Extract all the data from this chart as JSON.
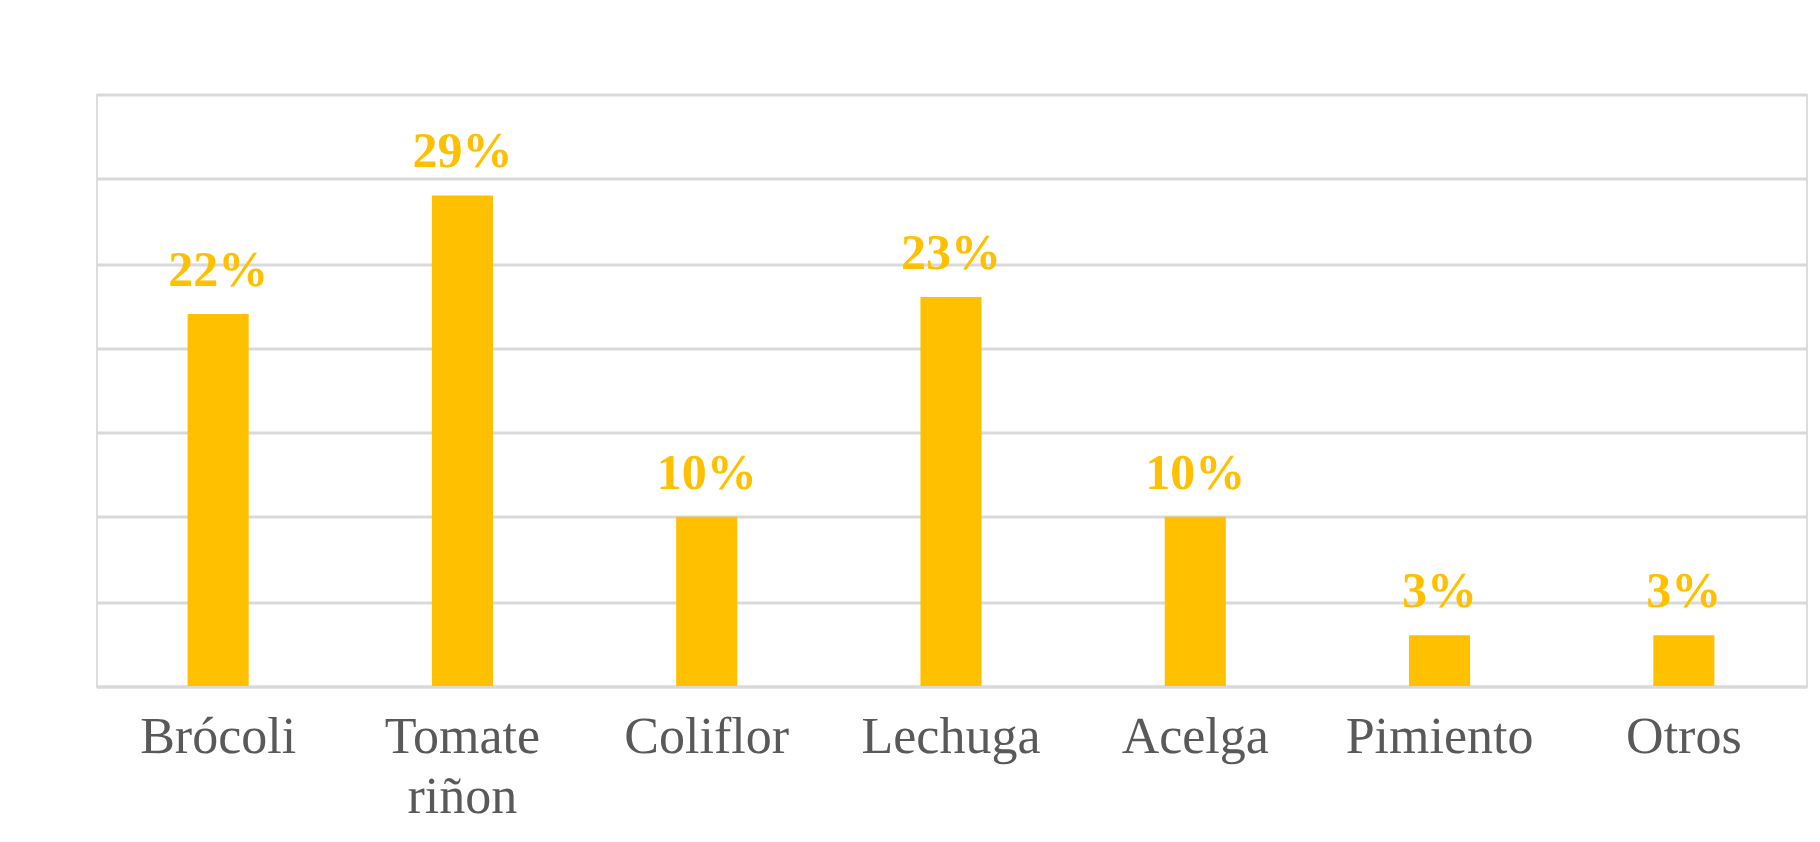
{
  "chart_data": {
    "type": "bar",
    "categories": [
      "Brócoli",
      "Tomate riñon",
      "Coliflor",
      "Lechuga",
      "Acelga",
      "Pimiento",
      "Otros"
    ],
    "values": [
      22,
      29,
      10,
      23,
      10,
      3,
      3
    ],
    "value_labels": [
      "22%",
      "29%",
      "10%",
      "23%",
      "10%",
      "3%",
      "3%"
    ],
    "color": "#ffc000",
    "ylim": [
      0,
      35
    ],
    "yticks": [
      {
        "value": 0,
        "label": null
      },
      {
        "value": 5,
        "label": null
      },
      {
        "value": 10,
        "label": null
      },
      {
        "value": 15,
        "label": null
      },
      {
        "value": 20,
        "label": null
      },
      {
        "value": 25,
        "label": null
      },
      {
        "value": 30,
        "label": null
      },
      {
        "value": 35,
        "label": null
      }
    ],
    "tick_labels": "x",
    "grid": "y"
  }
}
